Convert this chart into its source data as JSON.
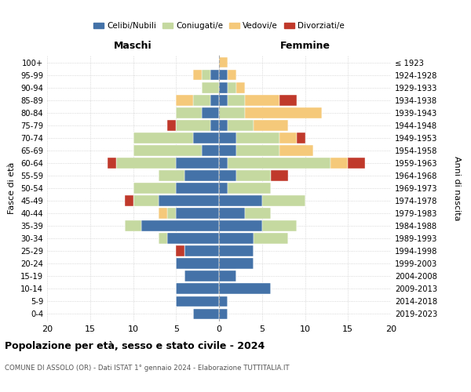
{
  "age_groups_bottom_to_top": [
    "0-4",
    "5-9",
    "10-14",
    "15-19",
    "20-24",
    "25-29",
    "30-34",
    "35-39",
    "40-44",
    "45-49",
    "50-54",
    "55-59",
    "60-64",
    "65-69",
    "70-74",
    "75-79",
    "80-84",
    "85-89",
    "90-94",
    "95-99",
    "100+"
  ],
  "birth_years_bottom_to_top": [
    "2019-2023",
    "2014-2018",
    "2009-2013",
    "2004-2008",
    "1999-2003",
    "1994-1998",
    "1989-1993",
    "1984-1988",
    "1979-1983",
    "1974-1978",
    "1969-1973",
    "1964-1968",
    "1959-1963",
    "1954-1958",
    "1949-1953",
    "1944-1948",
    "1939-1943",
    "1934-1938",
    "1929-1933",
    "1924-1928",
    "≤ 1923"
  ],
  "male": {
    "celibi": [
      3,
      5,
      5,
      4,
      5,
      4,
      6,
      9,
      5,
      7,
      5,
      4,
      5,
      2,
      3,
      1,
      2,
      1,
      0,
      1,
      0
    ],
    "coniugati": [
      0,
      0,
      0,
      0,
      0,
      0,
      1,
      2,
      1,
      3,
      5,
      3,
      7,
      8,
      7,
      4,
      3,
      2,
      2,
      1,
      0
    ],
    "vedovi": [
      0,
      0,
      0,
      0,
      0,
      0,
      0,
      0,
      1,
      0,
      0,
      0,
      0,
      0,
      0,
      0,
      0,
      2,
      0,
      1,
      0
    ],
    "divorziati": [
      0,
      0,
      0,
      0,
      0,
      1,
      0,
      0,
      0,
      1,
      0,
      0,
      1,
      0,
      0,
      1,
      0,
      0,
      0,
      0,
      0
    ]
  },
  "female": {
    "nubili": [
      1,
      1,
      6,
      2,
      4,
      4,
      4,
      5,
      3,
      5,
      1,
      2,
      1,
      2,
      2,
      1,
      0,
      1,
      1,
      1,
      0
    ],
    "coniugate": [
      0,
      0,
      0,
      0,
      0,
      0,
      4,
      4,
      3,
      5,
      5,
      4,
      12,
      5,
      5,
      3,
      3,
      2,
      1,
      0,
      0
    ],
    "vedove": [
      0,
      0,
      0,
      0,
      0,
      0,
      0,
      0,
      0,
      0,
      0,
      0,
      2,
      4,
      2,
      4,
      9,
      4,
      1,
      1,
      1
    ],
    "divorziate": [
      0,
      0,
      0,
      0,
      0,
      0,
      0,
      0,
      0,
      0,
      0,
      2,
      2,
      0,
      1,
      0,
      0,
      2,
      0,
      0,
      0
    ]
  },
  "colors": {
    "celibi_nubili": "#4472a8",
    "coniugati": "#c5d9a0",
    "vedovi": "#f5c97a",
    "divorziati": "#c0392b"
  },
  "title": "Popolazione per età, sesso e stato civile - 2024",
  "subtitle": "COMUNE DI ASSOLO (OR) - Dati ISTAT 1° gennaio 2024 - Elaborazione TUTTITALIA.IT",
  "xlabel_left": "Maschi",
  "xlabel_right": "Femmine",
  "ylabel_left": "Fasce di età",
  "ylabel_right": "Anni di nascita",
  "xlim": 20,
  "xtick_step": 5,
  "legend_labels": [
    "Celibi/Nubili",
    "Coniugati/e",
    "Vedovi/e",
    "Divorziati/e"
  ],
  "background_color": "#ffffff",
  "grid_color": "#cccccc"
}
